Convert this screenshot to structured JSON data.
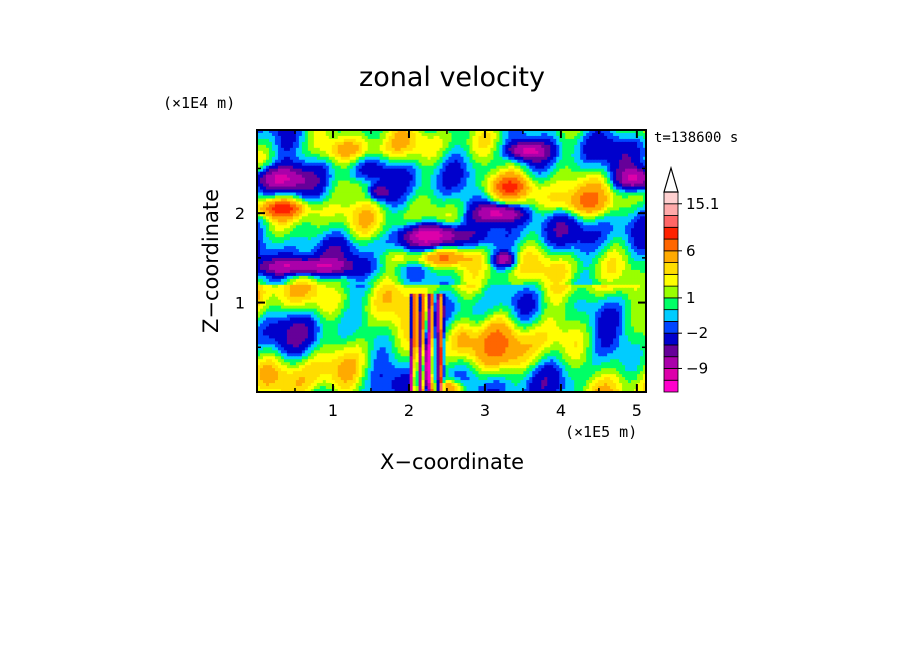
{
  "chart_data": {
    "type": "heatmap",
    "title": "zonal velocity",
    "timestamp": "t=138600 s",
    "xlabel": "X−coordinate",
    "ylabel": "Z−coordinate",
    "x_unit": "(×1E5 m)",
    "y_unit": "(×1E4 m)",
    "x_ticks": [
      "1",
      "2",
      "3",
      "4",
      "5"
    ],
    "y_ticks": [
      "1",
      "2"
    ],
    "x_tick_values": [
      1,
      2,
      3,
      4,
      5
    ],
    "y_tick_values": [
      1,
      2
    ],
    "xlim": [
      0,
      5.12
    ],
    "ylim": [
      0,
      2.93
    ],
    "colorbar": {
      "labels": [
        "15.1",
        "6",
        "1",
        "−2",
        "−9"
      ],
      "label_values": [
        15.1,
        6,
        1,
        -2,
        -9
      ],
      "levels": [
        -15,
        -12,
        -9,
        -6,
        -4,
        -2,
        -1,
        0,
        1,
        2,
        3,
        4,
        6,
        8,
        10,
        12.5,
        15.1
      ],
      "colors": [
        "#ff00cc",
        "#dd00aa",
        "#aa00aa",
        "#660099",
        "#0000cc",
        "#0044ff",
        "#00ccff",
        "#00ff66",
        "#99ff00",
        "#ffff00",
        "#ffdd00",
        "#ffaa00",
        "#ff6600",
        "#ff2200",
        "#ff6666",
        "#ffaaaa",
        "#ffd0d0"
      ],
      "overflow": "max"
    },
    "description_features": [
      {
        "x": 0.3,
        "z": 2.38,
        "v": -10,
        "sx": 0.35,
        "sz": 0.14
      },
      {
        "x": 1.6,
        "z": 2.25,
        "v": -7,
        "sx": 0.15,
        "sz": 0.1
      },
      {
        "x": 2.35,
        "z": 1.75,
        "v": -12,
        "sx": 0.4,
        "sz": 0.12
      },
      {
        "x": 3.2,
        "z": 2.0,
        "v": -10,
        "sx": 0.3,
        "sz": 0.1
      },
      {
        "x": 3.55,
        "z": 2.7,
        "v": -9,
        "sx": 0.25,
        "sz": 0.1
      },
      {
        "x": 5.0,
        "z": 2.38,
        "v": -10,
        "sx": 0.25,
        "sz": 0.12
      },
      {
        "x": 0.6,
        "z": 1.4,
        "v": -9,
        "sx": 0.55,
        "sz": 0.09
      },
      {
        "x": 3.25,
        "z": 1.48,
        "v": -8,
        "sx": 0.15,
        "sz": 0.08
      },
      {
        "x": 2.25,
        "z": 0.3,
        "v": -12,
        "sx": 0.06,
        "sz": 0.3
      },
      {
        "x": 0.3,
        "z": 2.05,
        "v": 7,
        "sx": 0.4,
        "sz": 0.1
      },
      {
        "x": 2.3,
        "z": 1.5,
        "v": 6,
        "sx": 0.55,
        "sz": 0.1
      },
      {
        "x": 3.3,
        "z": 2.3,
        "v": 6,
        "sx": 0.35,
        "sz": 0.15
      },
      {
        "x": 1.5,
        "z": 2.3,
        "v": 4,
        "sx": 0.35,
        "sz": 0.12
      },
      {
        "x": 4.2,
        "z": 2.1,
        "v": 4,
        "sx": 0.45,
        "sz": 0.15
      },
      {
        "x": 1.3,
        "z": 2.7,
        "v": 3,
        "sx": 0.5,
        "sz": 0.12
      },
      {
        "x": 2.7,
        "z": 0.6,
        "v": 4,
        "sx": 0.2,
        "sz": 0.25
      },
      {
        "x": 3.2,
        "z": 0.9,
        "v": 3,
        "sx": 0.3,
        "sz": 0.35
      },
      {
        "x": 2.55,
        "z": 0.05,
        "v": 6,
        "sx": 0.15,
        "sz": 0.08
      }
    ]
  }
}
